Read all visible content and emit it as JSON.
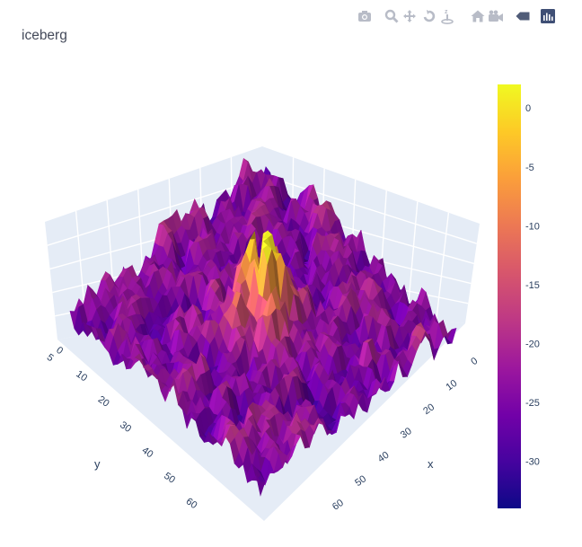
{
  "title": "iceberg",
  "modebar": {
    "buttons": [
      "camera-icon",
      "zoom-icon",
      "pan-icon",
      "orbit-icon",
      "turntable-icon",
      "home-icon",
      "default-view-icon",
      "hover-toggle-icon",
      "plotly-logo-icon"
    ],
    "color": "#b8bcc7",
    "active_color": "#3f4f75"
  },
  "chart_data": {
    "type": "surface",
    "title": "iceberg",
    "xlabel": "x",
    "ylabel": "y",
    "zlabel": "",
    "x_ticks": [
      "0",
      "10",
      "20",
      "30",
      "40",
      "50",
      "60"
    ],
    "y_ticks": [
      "0",
      "10",
      "20",
      "30",
      "40",
      "50",
      "60"
    ],
    "y_tick_partial": "5",
    "xlim": [
      0,
      70
    ],
    "ylim": [
      0,
      70
    ],
    "zlim": [
      -34,
      2
    ],
    "colorscale": "plasma",
    "colorbar": {
      "ticks": [
        "0",
        "-5",
        "-10",
        "-15",
        "-20",
        "-25",
        "-30"
      ],
      "tick_values": [
        0,
        -5,
        -10,
        -15,
        -20,
        -25,
        -30
      ],
      "range": [
        -34,
        2
      ],
      "colors": [
        "#0d0887",
        "#46039f",
        "#7201a8",
        "#9c179e",
        "#bd3786",
        "#d8576b",
        "#ed7953",
        "#fb9f3a",
        "#fdca26",
        "#f0f921"
      ]
    },
    "description_points": {
      "base_level": -24,
      "peak_level": 1,
      "peak_location": [
        35,
        35
      ]
    }
  }
}
